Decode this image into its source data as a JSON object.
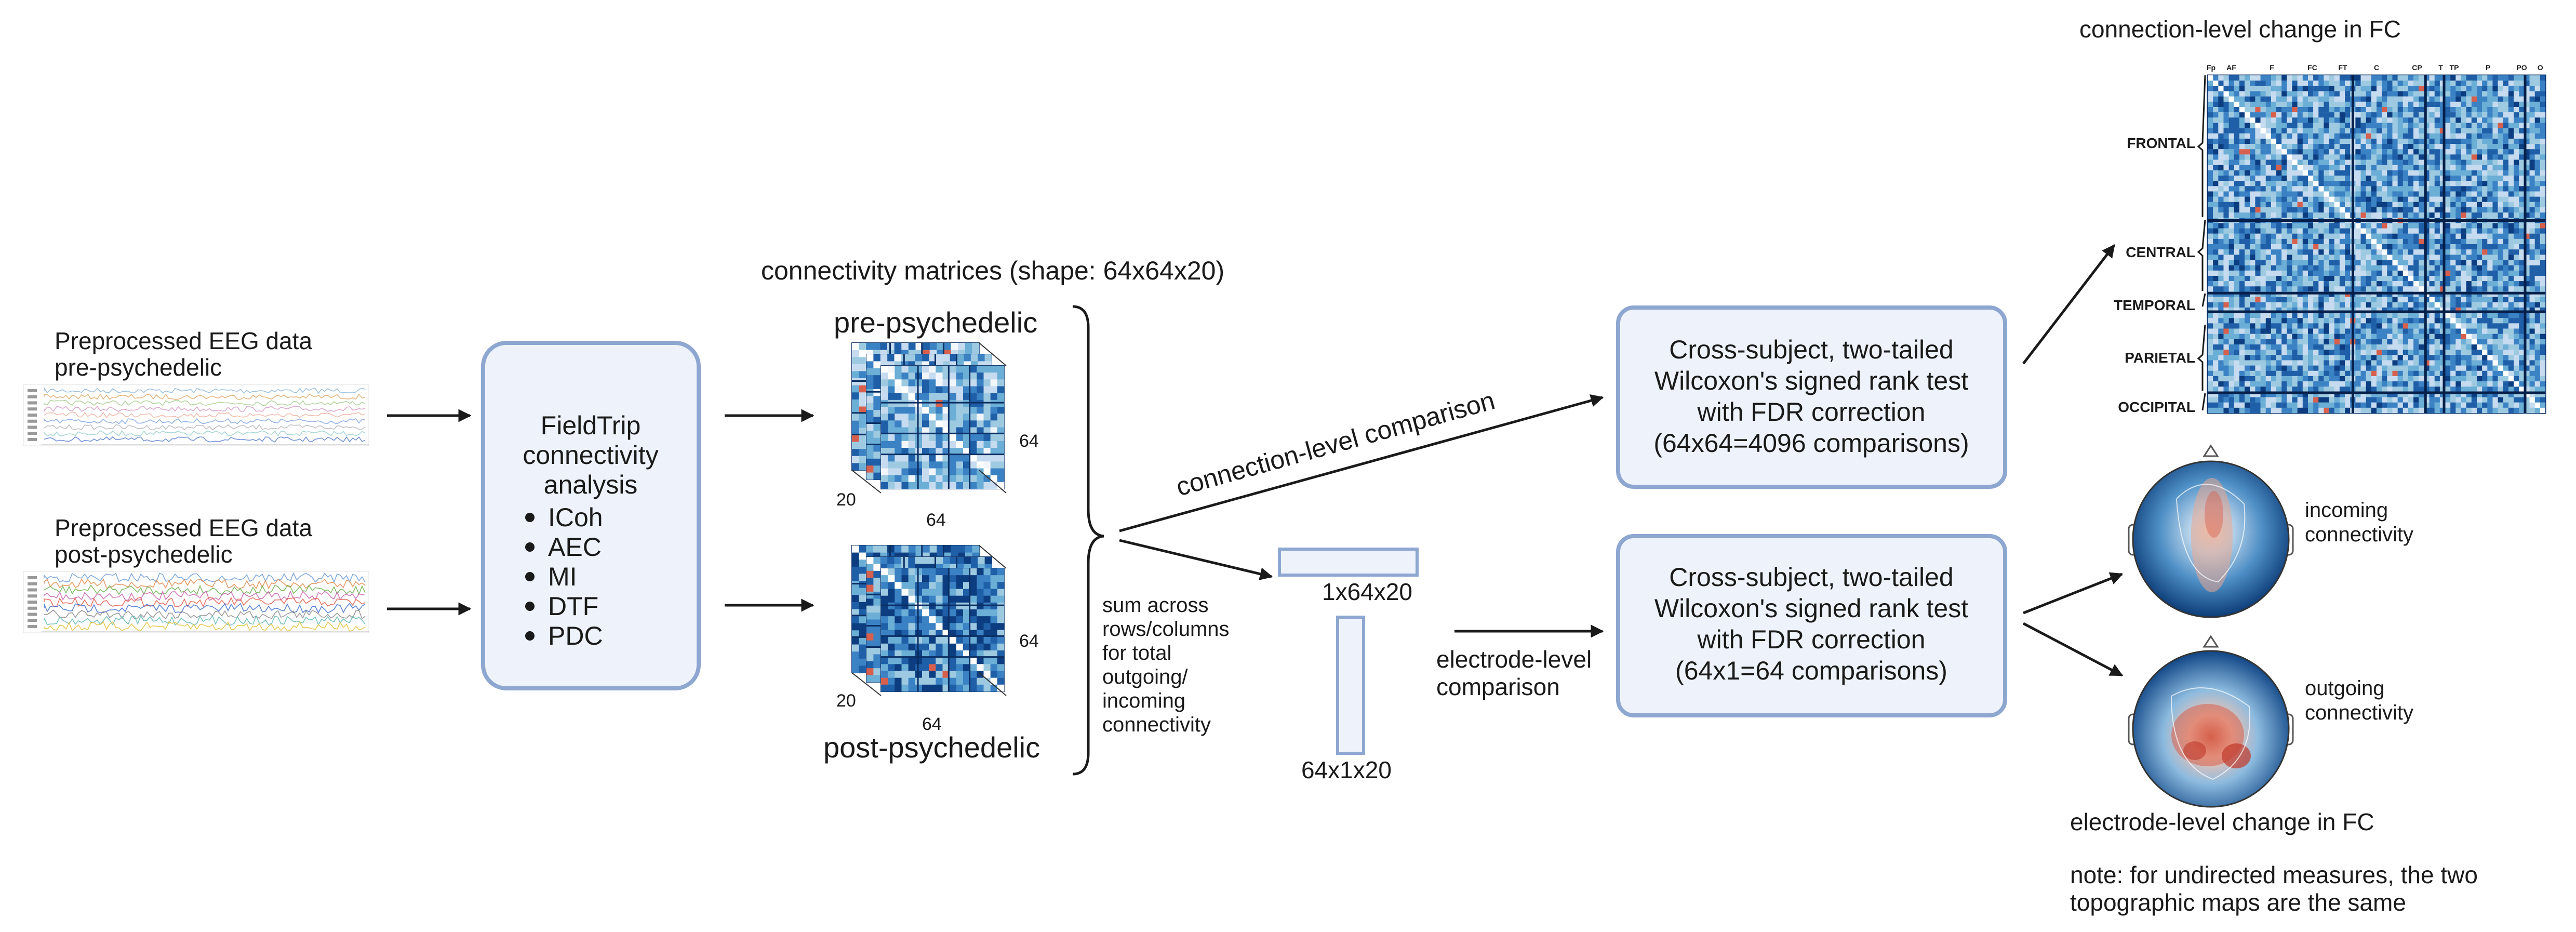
{
  "eeg": {
    "pre_line1": "Preprocessed EEG data",
    "pre_line2": "pre-psychedelic",
    "post_line1": "Preprocessed EEG data",
    "post_line2": "post-psychedelic"
  },
  "fieldtrip": {
    "line1": "FieldTrip",
    "line2": "connectivity",
    "line3": "analysis",
    "measures": [
      "ICoh",
      "AEC",
      "MI",
      "DTF",
      "PDC"
    ]
  },
  "matrices": {
    "header": "connectivity matrices (shape: 64x64x20)",
    "pre_label": "pre-psychedelic",
    "post_label": "post-psychedelic",
    "dim_64": "64",
    "dim_20": "20"
  },
  "sum_note": [
    "sum across",
    "rows/columns",
    "for total",
    "outgoing/",
    "incoming",
    "connectivity"
  ],
  "connection_comparison": "connection-level comparison",
  "electrode_comparison": [
    "electrode-level",
    "comparison"
  ],
  "vectors": {
    "row_label": "1x64x20",
    "col_label": "64x1x20"
  },
  "test_top": [
    "Cross-subject, two-tailed",
    "Wilcoxon's signed rank test",
    "with FDR correction",
    "(64x64=4096 comparisons)"
  ],
  "test_bottom": [
    "Cross-subject, two-tailed",
    "Wilcoxon's signed rank test",
    "with FDR correction",
    "(64x1=64 comparisons)"
  ],
  "fc_matrix": {
    "title": "connection-level change in FC",
    "regions": [
      "FRONTAL",
      "CENTRAL",
      "TEMPORAL",
      "PARIETAL",
      "OCCIPITAL"
    ],
    "top_labels": [
      "Fp",
      "AF",
      "F",
      "FC",
      "FT",
      "C",
      "CP",
      "T",
      "TP",
      "P",
      "PO",
      "O"
    ]
  },
  "topo": {
    "incoming": [
      "incoming",
      "connectivity"
    ],
    "outgoing": [
      "outgoing",
      "connectivity"
    ],
    "title": "electrode-level change in FC",
    "note_line1": "note: for undirected measures, the two",
    "note_line2": "topographic maps are the same"
  },
  "colors": {
    "box_fill": "#eef3fb",
    "box_stroke": "#8ea7d0",
    "matrix_blue": "#1f5fa8",
    "matrix_dark": "#0b2f63",
    "increase_red": "#d6604d"
  }
}
